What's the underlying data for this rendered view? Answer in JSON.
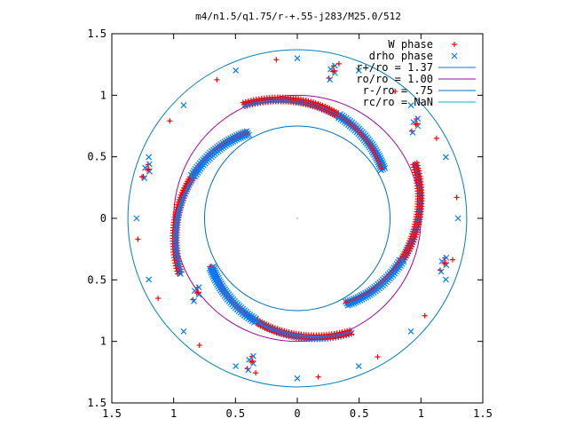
{
  "chart_data": {
    "type": "scatter",
    "title": "m4/n1.5/q1.75/r-+.55-j283/M25.0/512",
    "xlabel": "",
    "ylabel": "",
    "xlim": [
      -1.5,
      1.5
    ],
    "ylim": [
      -1.5,
      1.5
    ],
    "x_ticks": [
      -1.5,
      -1,
      -0.5,
      0,
      0.5,
      1,
      1.5
    ],
    "y_ticks": [
      -1.5,
      -1,
      -0.5,
      0,
      0.5,
      1,
      1.5
    ],
    "x_tick_labels": [
      "1.5",
      "1",
      "0.5",
      "0",
      "0.5",
      "1",
      "1.5"
    ],
    "y_tick_labels": [
      "1.5",
      "1",
      "0.5",
      "0",
      "0.5",
      "1",
      "1.5"
    ],
    "grid": false,
    "legend_position": "top-right",
    "legend": [
      {
        "label": "W phase",
        "color": "#ff0000",
        "marker": "plus"
      },
      {
        "label": "drho phase",
        "color": "#0080ff",
        "marker": "cross"
      },
      {
        "label": "r+/ro = 1.37",
        "color": "#0080c0",
        "marker": "line"
      },
      {
        "label": "ro/ro = 1.00",
        "color": "#a000a0",
        "marker": "line"
      },
      {
        "label": "r-/ro = .75",
        "color": "#0070c0",
        "marker": "line"
      },
      {
        "label": "rc/ro = NaN",
        "color": "#00c0c0",
        "marker": "line"
      }
    ],
    "circles": [
      {
        "radius": 1.37,
        "color": "#0080c0"
      },
      {
        "radius": 1.0,
        "color": "#a000a0"
      },
      {
        "radius": 0.75,
        "color": "#0070c0"
      }
    ],
    "arms": [
      {
        "cx": 0,
        "cy": 0,
        "r_start": 1.02,
        "r_end": 0.8,
        "a_start": 115,
        "a_end": 30,
        "phase_color": "red_then_blue"
      },
      {
        "cx": 0,
        "cy": 0,
        "r_start": 1.05,
        "r_end": 0.8,
        "a_start": 205,
        "a_end": 120,
        "phase_color": "red_then_blue"
      },
      {
        "cx": 0,
        "cy": 0,
        "r_start": 1.02,
        "r_end": 0.8,
        "a_start": 295,
        "a_end": 210,
        "phase_color": "red_then_blue"
      },
      {
        "cx": 0,
        "cy": 0,
        "r_start": 1.05,
        "r_end": 0.8,
        "a_start": 25,
        "a_end": -60,
        "phase_color": "red_then_blue"
      }
    ],
    "outer_clusters": [
      {
        "x": 0.28,
        "y": 1.18
      },
      {
        "x": 0.95,
        "y": 0.75
      },
      {
        "x": -1.22,
        "y": 0.38
      },
      {
        "x": -0.38,
        "y": -1.18
      },
      {
        "x": 1.18,
        "y": -0.38
      },
      {
        "x": -0.82,
        "y": -0.62
      }
    ],
    "center_point": {
      "x": 0,
      "y": 0
    }
  }
}
